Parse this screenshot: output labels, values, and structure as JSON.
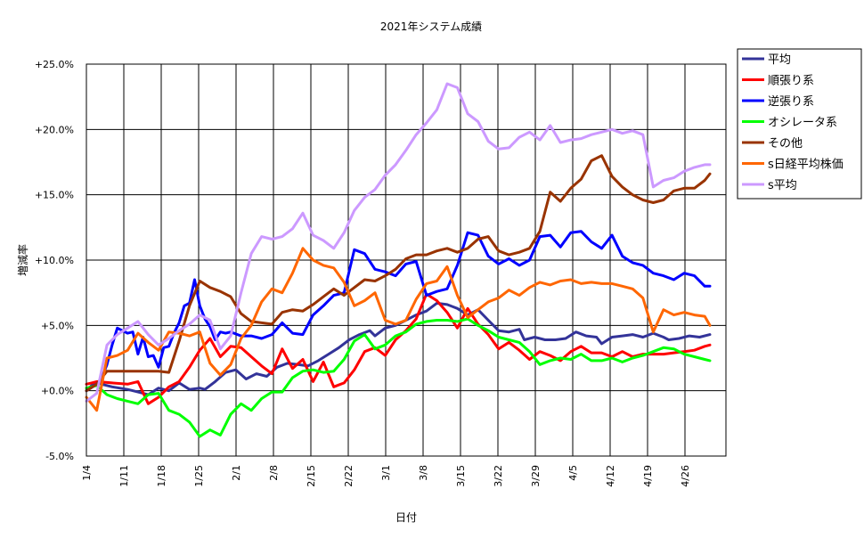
{
  "chart_data": {
    "type": "line",
    "title": "2021年システム成績",
    "xlabel": "日付",
    "ylabel": "増減率",
    "x_ticks": [
      "1/4",
      "1/11",
      "1/18",
      "1/25",
      "2/1",
      "2/8",
      "2/15",
      "2/22",
      "3/1",
      "3/8",
      "3/15",
      "3/22",
      "3/29",
      "4/5",
      "4/12",
      "4/19",
      "4/26"
    ],
    "y_ticks": [
      {
        "value": 25,
        "label": "+25.0%"
      },
      {
        "value": 20,
        "label": "+20.0%"
      },
      {
        "value": 15,
        "label": "+15.0%"
      },
      {
        "value": 10,
        "label": "+10.0%"
      },
      {
        "value": 5,
        "label": "+5.0%"
      },
      {
        "value": 0,
        "label": "+0.0%"
      },
      {
        "value": -5,
        "label": "-5.0%",
        "color": "#cc0000"
      }
    ],
    "ylim": [
      -5,
      25
    ],
    "xlim": [
      0,
      121
    ],
    "grid": true,
    "legend_position": "right",
    "series": [
      {
        "name": "平均",
        "color": "#333399",
        "x": [
          0,
          1,
          2,
          5,
          8,
          10,
          12,
          14,
          16,
          18,
          20,
          22,
          23,
          25,
          27,
          29,
          31,
          33,
          35,
          37,
          39,
          41,
          43,
          45,
          47,
          49,
          51,
          53,
          55,
          56,
          58,
          60,
          62,
          64,
          66,
          68,
          70,
          72,
          74,
          76,
          78,
          80,
          82,
          84,
          85,
          87,
          89,
          91,
          93,
          95,
          97,
          99,
          100,
          102,
          104,
          106,
          108,
          110,
          112,
          113,
          115,
          117,
          119,
          121
        ],
        "y": [
          0,
          0.4,
          0.6,
          0.3,
          0.1,
          -0.1,
          -0.3,
          0.2,
          0,
          0.6,
          0.1,
          0.2,
          0.1,
          0.7,
          1.4,
          1.6,
          0.9,
          1.3,
          1.1,
          1.8,
          2.1,
          2.0,
          1.9,
          2.3,
          2.8,
          3.3,
          3.9,
          4.3,
          4.6,
          4.2,
          4.8,
          5.0,
          5.4,
          5.8,
          6.1,
          6.7,
          6.6,
          6.3,
          5.8,
          6.2,
          5.4,
          4.6,
          4.5,
          4.7,
          3.9,
          4.1,
          3.9,
          3.9,
          4.0,
          4.5,
          4.2,
          4.1,
          3.6,
          4.1,
          4.2,
          4.3,
          4.1,
          4.4,
          4.1,
          3.9,
          4.0,
          4.2,
          4.1,
          4.3
        ]
      },
      {
        "name": "順張り系",
        "color": "#ff0000",
        "x": [
          0,
          1,
          2,
          5,
          8,
          10,
          12,
          14,
          16,
          18,
          20,
          22,
          24,
          26,
          28,
          30,
          32,
          34,
          36,
          38,
          40,
          42,
          44,
          46,
          48,
          50,
          52,
          54,
          56,
          58,
          60,
          62,
          64,
          66,
          68,
          70,
          72,
          74,
          76,
          78,
          80,
          82,
          84,
          86,
          88,
          90,
          92,
          94,
          96,
          98,
          100,
          102,
          104,
          106,
          108,
          110,
          112,
          114,
          116,
          118,
          120,
          121
        ],
        "y": [
          0.5,
          0.6,
          0.7,
          0.6,
          0.5,
          0.7,
          -1.0,
          -0.5,
          0.3,
          0.7,
          1.8,
          3.1,
          4.0,
          2.6,
          3.4,
          3.3,
          2.6,
          1.9,
          1.3,
          3.2,
          1.7,
          2.4,
          0.7,
          2.2,
          0.3,
          0.6,
          1.6,
          3.0,
          3.3,
          2.7,
          3.9,
          4.6,
          5.5,
          7.4,
          6.9,
          6.0,
          4.8,
          6.3,
          5.1,
          4.3,
          3.2,
          3.7,
          3.1,
          2.4,
          3.0,
          2.7,
          2.3,
          3.0,
          3.4,
          2.9,
          2.9,
          2.6,
          3.0,
          2.6,
          2.8,
          2.8,
          2.8,
          2.9,
          3.0,
          3.1,
          3.4,
          3.5
        ]
      },
      {
        "name": "逆張り系",
        "color": "#0000ff",
        "x": [
          0,
          2,
          3,
          4,
          5,
          6,
          7,
          8,
          9,
          10,
          11,
          12,
          13,
          14,
          15,
          16,
          17,
          18,
          19,
          20,
          21,
          22,
          23,
          24,
          25,
          26,
          27,
          28,
          30,
          32,
          34,
          36,
          38,
          40,
          42,
          44,
          46,
          48,
          50,
          52,
          54,
          56,
          58,
          60,
          62,
          64,
          66,
          68,
          70,
          72,
          74,
          76,
          78,
          80,
          82,
          84,
          86,
          88,
          90,
          92,
          94,
          96,
          98,
          100,
          102,
          104,
          106,
          108,
          110,
          112,
          114,
          116,
          118,
          120,
          121
        ],
        "y": [
          0,
          0.5,
          1.0,
          2.0,
          3.5,
          4.8,
          4.6,
          4.4,
          4.5,
          2.8,
          4.1,
          2.6,
          2.7,
          1.8,
          3.3,
          3.4,
          4.4,
          5.2,
          6.5,
          6.7,
          8.5,
          6.5,
          5.5,
          4.9,
          3.9,
          4.5,
          4.4,
          4.5,
          4.2,
          4.2,
          4.0,
          4.3,
          5.2,
          4.4,
          4.3,
          5.8,
          6.5,
          7.3,
          7.5,
          10.8,
          10.5,
          9.3,
          9.1,
          8.8,
          9.7,
          9.9,
          7.3,
          7.6,
          7.8,
          9.6,
          12.1,
          11.9,
          10.3,
          9.7,
          10.1,
          9.6,
          10.0,
          11.8,
          11.9,
          11.0,
          12.1,
          12.2,
          11.4,
          10.9,
          11.9,
          10.3,
          9.8,
          9.6,
          9.0,
          8.8,
          8.5,
          9.0,
          8.8,
          8.0,
          8.0
        ]
      },
      {
        "name": "オシレータ系",
        "color": "#00ff00",
        "x": [
          0,
          2,
          4,
          6,
          8,
          10,
          12,
          14,
          16,
          18,
          20,
          22,
          24,
          26,
          28,
          30,
          32,
          34,
          36,
          38,
          40,
          42,
          44,
          46,
          48,
          50,
          52,
          54,
          56,
          58,
          60,
          62,
          64,
          66,
          68,
          70,
          72,
          74,
          76,
          78,
          80,
          82,
          84,
          86,
          88,
          90,
          92,
          94,
          96,
          98,
          100,
          102,
          104,
          106,
          108,
          110,
          112,
          114,
          116,
          118,
          120,
          121
        ],
        "y": [
          0.2,
          0.4,
          -0.3,
          -0.6,
          -0.8,
          -1.0,
          -0.3,
          -0.2,
          -1.5,
          -1.8,
          -2.4,
          -3.5,
          -3.0,
          -3.4,
          -1.8,
          -1.0,
          -1.5,
          -0.6,
          -0.1,
          -0.1,
          1.0,
          1.5,
          1.6,
          1.4,
          1.5,
          2.4,
          3.8,
          4.3,
          3.2,
          3.5,
          4.2,
          4.5,
          5.1,
          5.3,
          5.4,
          5.4,
          5.3,
          5.5,
          5.0,
          4.6,
          4.1,
          3.9,
          3.7,
          3.0,
          2.0,
          2.3,
          2.5,
          2.4,
          2.8,
          2.3,
          2.3,
          2.5,
          2.2,
          2.5,
          2.7,
          3.0,
          3.3,
          3.2,
          2.8,
          2.6,
          2.4,
          2.3
        ]
      },
      {
        "name": "その他",
        "color": "#993300",
        "x": [
          0,
          2,
          4,
          6,
          8,
          10,
          12,
          14,
          16,
          18,
          20,
          22,
          24,
          26,
          28,
          30,
          32,
          34,
          36,
          38,
          40,
          42,
          44,
          46,
          48,
          50,
          52,
          54,
          56,
          58,
          60,
          62,
          64,
          66,
          68,
          70,
          72,
          74,
          76,
          78,
          80,
          82,
          84,
          86,
          88,
          90,
          92,
          94,
          96,
          98,
          100,
          102,
          104,
          106,
          108,
          110,
          112,
          114,
          116,
          118,
          120,
          121
        ],
        "y": [
          0,
          0.5,
          1.5,
          1.5,
          1.5,
          1.5,
          1.5,
          1.5,
          1.4,
          3.8,
          6.5,
          8.4,
          7.9,
          7.6,
          7.2,
          5.9,
          5.3,
          5.2,
          5.1,
          6.0,
          6.2,
          6.1,
          6.6,
          7.2,
          7.8,
          7.3,
          7.9,
          8.5,
          8.4,
          8.8,
          9.3,
          10.1,
          10.4,
          10.4,
          10.7,
          10.9,
          10.6,
          10.9,
          11.6,
          11.8,
          10.7,
          10.4,
          10.6,
          10.9,
          12.2,
          15.2,
          14.5,
          15.5,
          16.2,
          17.6,
          18.0,
          16.4,
          15.6,
          15.0,
          14.6,
          14.4,
          14.6,
          15.3,
          15.5,
          15.5,
          16.1,
          16.6
        ]
      },
      {
        "name": "s日経平均株価",
        "color": "#ff6600",
        "x": [
          0,
          2,
          4,
          6,
          8,
          10,
          12,
          14,
          16,
          18,
          20,
          22,
          24,
          26,
          28,
          30,
          32,
          34,
          36,
          38,
          40,
          42,
          44,
          46,
          48,
          50,
          52,
          54,
          56,
          58,
          60,
          62,
          64,
          66,
          68,
          70,
          72,
          74,
          76,
          78,
          80,
          82,
          84,
          86,
          88,
          90,
          92,
          94,
          96,
          98,
          100,
          102,
          104,
          106,
          108,
          110,
          112,
          114,
          116,
          118,
          120,
          121
        ],
        "y": [
          -0.5,
          -1.5,
          2.5,
          2.7,
          3.1,
          4.4,
          3.7,
          3.1,
          4.5,
          4.4,
          4.2,
          4.5,
          2.1,
          1.2,
          2.0,
          4.0,
          5.0,
          6.8,
          7.8,
          7.5,
          9.0,
          10.9,
          10.0,
          9.6,
          9.4,
          8.3,
          6.5,
          6.9,
          7.5,
          5.4,
          5.1,
          5.4,
          7.0,
          8.2,
          8.4,
          9.5,
          7.3,
          5.6,
          6.2,
          6.8,
          7.1,
          7.7,
          7.3,
          7.9,
          8.3,
          8.1,
          8.4,
          8.5,
          8.2,
          8.3,
          8.2,
          8.2,
          8.0,
          7.8,
          7.1,
          4.5,
          6.2,
          5.8,
          6.0,
          5.8,
          5.7,
          5.0
        ]
      },
      {
        "name": "s平均",
        "color": "#cc99ff",
        "x": [
          0,
          2,
          4,
          6,
          8,
          10,
          12,
          14,
          16,
          18,
          20,
          22,
          24,
          26,
          28,
          30,
          32,
          34,
          36,
          38,
          40,
          42,
          44,
          46,
          48,
          50,
          52,
          54,
          56,
          58,
          60,
          62,
          64,
          66,
          68,
          70,
          72,
          74,
          76,
          78,
          80,
          82,
          84,
          86,
          88,
          90,
          92,
          94,
          96,
          98,
          100,
          102,
          104,
          106,
          108,
          110,
          112,
          114,
          116,
          118,
          120,
          121
        ],
        "y": [
          -0.8,
          -0.2,
          3.5,
          4.3,
          4.8,
          5.3,
          4.3,
          3.5,
          4.0,
          4.6,
          5.1,
          5.8,
          5.4,
          3.2,
          4.2,
          7.5,
          10.5,
          11.8,
          11.6,
          11.8,
          12.4,
          13.6,
          11.9,
          11.5,
          10.9,
          12.1,
          13.8,
          14.8,
          15.4,
          16.5,
          17.3,
          18.4,
          19.6,
          20.5,
          21.5,
          23.5,
          23.2,
          21.2,
          20.6,
          19.1,
          18.5,
          18.6,
          19.4,
          19.8,
          19.2,
          20.3,
          19.0,
          19.2,
          19.3,
          19.6,
          19.8,
          20.0,
          19.7,
          19.9,
          19.6,
          15.6,
          16.1,
          16.3,
          16.8,
          17.1,
          17.3,
          17.3
        ]
      }
    ]
  }
}
